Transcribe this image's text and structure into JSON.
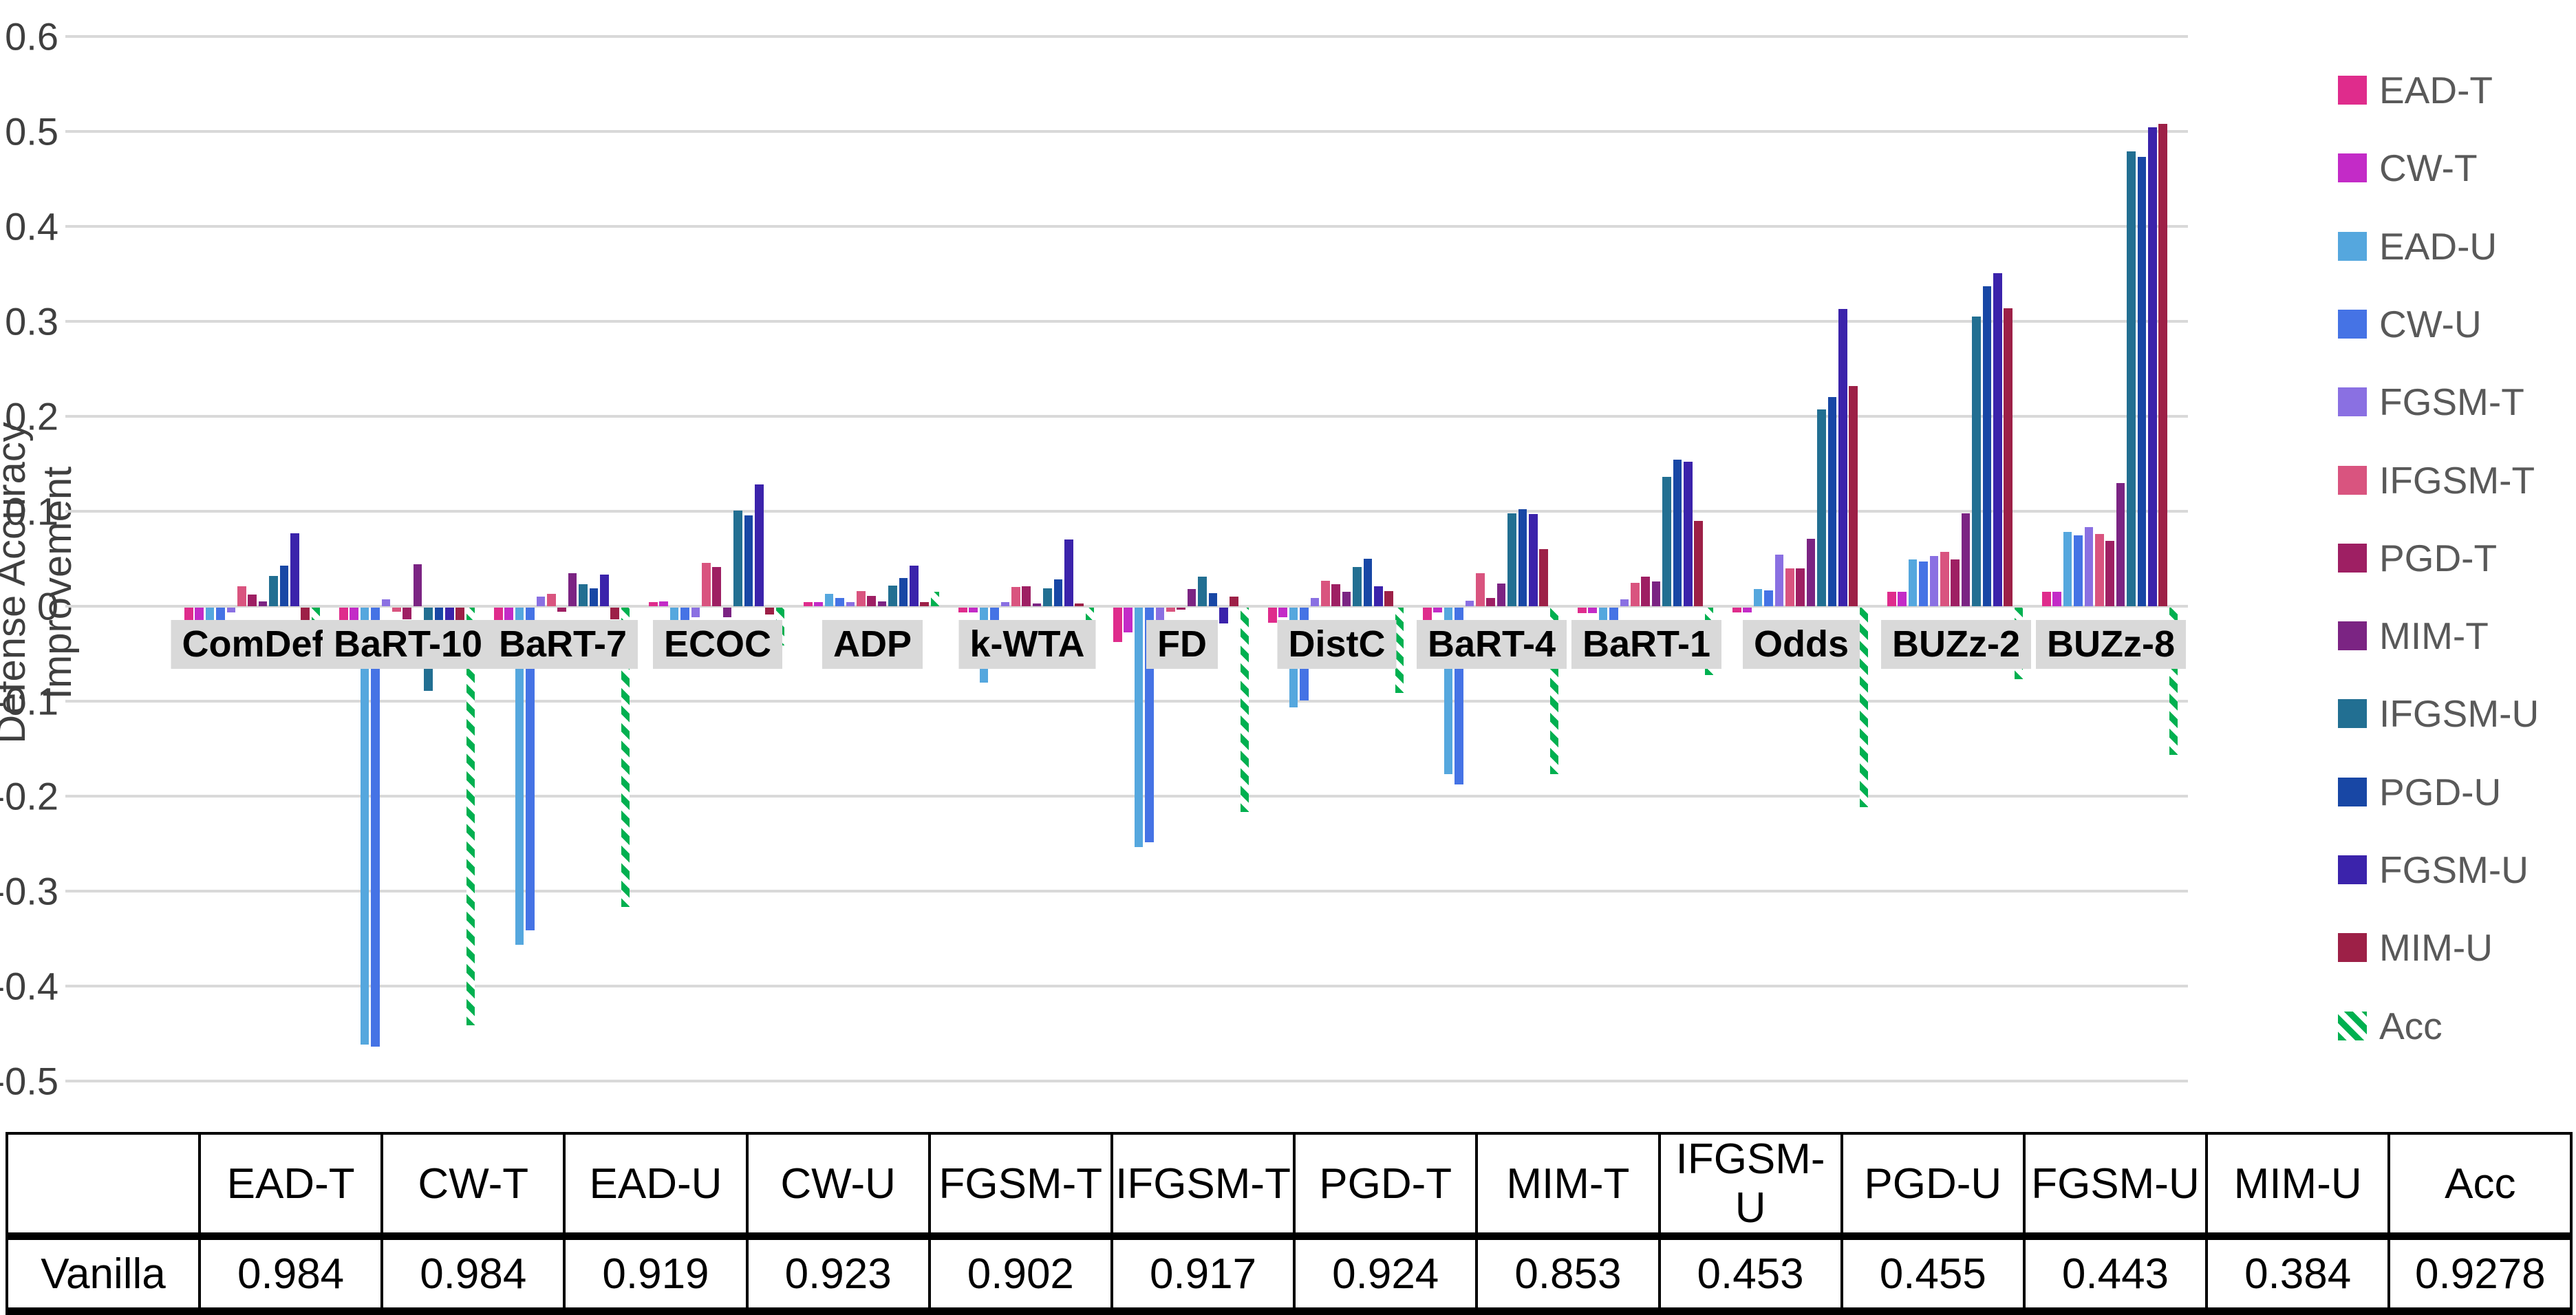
{
  "chart_data": {
    "type": "bar",
    "title": "",
    "xlabel": "",
    "ylabel": "Defense Accuracy Improvement",
    "ylim": [
      -0.5,
      0.6
    ],
    "ytick_step": 0.1,
    "yticks": [
      0.6,
      0.5,
      0.4,
      0.3,
      0.2,
      0.1,
      0,
      -0.1,
      -0.2,
      -0.3,
      -0.4,
      -0.5
    ],
    "grid": true,
    "legend_position": "right",
    "categories": [
      "ComDef",
      "BaRT-10",
      "BaRT-7",
      "ECOC",
      "ADP",
      "k-WTA",
      "FD",
      "DistC",
      "BaRT-4",
      "BaRT-1",
      "Odds",
      "BUZz-2",
      "BUZz-8"
    ],
    "series": [
      {
        "name": "EAD-T",
        "color": "#DF2C8C",
        "pattern": "solid",
        "values": [
          -0.015,
          -0.017,
          -0.035,
          0.004,
          0.004,
          -0.005,
          -0.036,
          -0.016,
          -0.02,
          -0.006,
          -0.005,
          0.015,
          0.015
        ]
      },
      {
        "name": "CW-T",
        "color": "#C32BC7",
        "pattern": "solid",
        "values": [
          -0.014,
          -0.017,
          -0.018,
          0.005,
          0.004,
          -0.005,
          -0.026,
          -0.01,
          -0.005,
          -0.006,
          -0.005,
          0.015,
          0.015
        ]
      },
      {
        "name": "EAD-U",
        "color": "#55A7DE",
        "pattern": "solid",
        "values": [
          -0.017,
          -0.46,
          -0.355,
          -0.031,
          0.013,
          -0.079,
          -0.252,
          -0.105,
          -0.175,
          -0.017,
          0.018,
          0.049,
          0.078
        ]
      },
      {
        "name": "CW-U",
        "color": "#4573E5",
        "pattern": "solid",
        "values": [
          -0.017,
          -0.462,
          -0.34,
          -0.017,
          0.009,
          -0.017,
          -0.247,
          -0.098,
          -0.186,
          -0.017,
          0.017,
          0.047,
          0.075
        ]
      },
      {
        "name": "FGSM-T",
        "color": "#8A70E2",
        "pattern": "solid",
        "values": [
          -0.005,
          0.007,
          0.01,
          -0.01,
          0.004,
          0.004,
          -0.017,
          0.009,
          0.006,
          0.007,
          0.054,
          0.053,
          0.083
        ]
      },
      {
        "name": "IFGSM-T",
        "color": "#D9547F",
        "pattern": "solid",
        "values": [
          0.021,
          -0.004,
          0.013,
          0.046,
          0.016,
          0.02,
          -0.004,
          0.027,
          0.035,
          0.025,
          0.04,
          0.057,
          0.076
        ]
      },
      {
        "name": "PGD-T",
        "color": "#9E1F63",
        "pattern": "solid",
        "values": [
          0.012,
          -0.012,
          -0.004,
          0.041,
          0.011,
          0.021,
          -0.002,
          0.023,
          0.009,
          0.031,
          0.04,
          0.049,
          0.069
        ]
      },
      {
        "name": "MIM-T",
        "color": "#7B2483",
        "pattern": "solid",
        "values": [
          0.005,
          0.044,
          0.035,
          -0.01,
          0.005,
          0.003,
          0.018,
          0.015,
          0.024,
          0.026,
          0.071,
          0.098,
          0.13
        ]
      },
      {
        "name": "IFGSM-U",
        "color": "#226F92",
        "pattern": "solid",
        "values": [
          0.032,
          -0.088,
          0.023,
          0.101,
          0.022,
          0.019,
          0.031,
          0.041,
          0.098,
          0.136,
          0.207,
          0.305,
          0.479
        ]
      },
      {
        "name": "PGD-U",
        "color": "#1847A5",
        "pattern": "solid",
        "values": [
          0.043,
          -0.017,
          0.019,
          0.096,
          0.03,
          0.028,
          0.014,
          0.05,
          0.102,
          0.154,
          0.22,
          0.337,
          0.473
        ]
      },
      {
        "name": "FGSM-U",
        "color": "#3B23AB",
        "pattern": "solid",
        "values": [
          0.077,
          -0.017,
          0.033,
          0.128,
          0.043,
          0.07,
          -0.017,
          0.021,
          0.097,
          0.152,
          0.313,
          0.351,
          0.504
        ]
      },
      {
        "name": "MIM-U",
        "color": "#9D2047",
        "pattern": "solid",
        "values": [
          -0.017,
          -0.017,
          -0.012,
          -0.007,
          0.004,
          0.003,
          0.01,
          0.016,
          0.06,
          0.09,
          0.232,
          0.314,
          0.508
        ]
      },
      {
        "name": "Acc",
        "color": "#00B050",
        "pattern": "diagonal-stripes",
        "values": [
          -0.019,
          -0.44,
          -0.315,
          -0.04,
          0.015,
          -0.052,
          -0.215,
          -0.09,
          -0.175,
          -0.071,
          -0.21,
          -0.075,
          -0.155
        ]
      }
    ]
  },
  "table": {
    "columns": [
      "",
      "EAD-T",
      "CW-T",
      "EAD-U",
      "CW-U",
      "FGSM-T",
      "IFGSM-T",
      "PGD-T",
      "MIM-T",
      "IFGSM-U",
      "PGD-U",
      "FGSM-U",
      "MIM-U",
      "Acc"
    ],
    "rows": [
      {
        "label": "Vanilla",
        "values": [
          "0.984",
          "0.984",
          "0.919",
          "0.923",
          "0.902",
          "0.917",
          "0.924",
          "0.853",
          "0.453",
          "0.455",
          "0.443",
          "0.384",
          "0.9278"
        ]
      }
    ]
  },
  "colors": {
    "grid": "#D9D9D9",
    "category_label_bg": "#D9D9D9",
    "tick_text": "#3F3F3F",
    "legend_text": "#595959",
    "acc_green": "#00B050"
  }
}
